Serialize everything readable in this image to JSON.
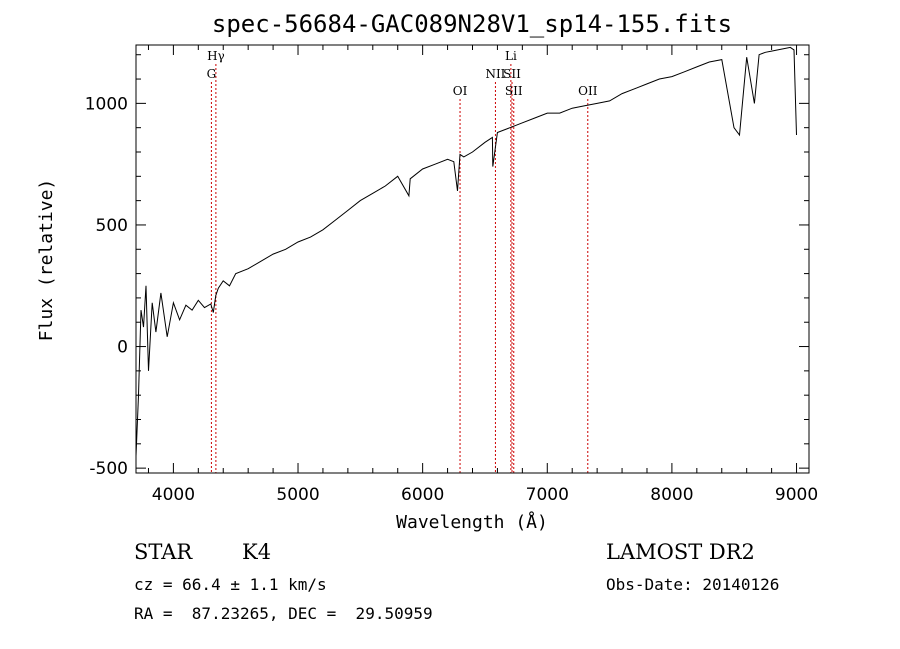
{
  "chart_data": {
    "type": "line",
    "title": "spec-56684-GAC089N28V1_sp14-155.fits",
    "xlabel": "Wavelength (Å)",
    "ylabel": "Flux (relative)",
    "xlim": [
      3700,
      9100
    ],
    "ylim": [
      -520,
      1240
    ],
    "xticks": [
      4000,
      5000,
      6000,
      7000,
      8000,
      9000
    ],
    "yticks": [
      -500,
      0,
      500,
      1000
    ],
    "series": [
      {
        "x": [
          3700,
          3720,
          3740,
          3760,
          3780,
          3800,
          3830,
          3860,
          3900,
          3950,
          4000,
          4050,
          4100,
          4150,
          4200,
          4250,
          4300,
          4320,
          4340,
          4360,
          4400,
          4450,
          4500,
          4600,
          4700,
          4800,
          4900,
          5000,
          5100,
          5200,
          5300,
          5400,
          5500,
          5600,
          5700,
          5800,
          5890,
          5900,
          6000,
          6100,
          6200,
          6250,
          6280,
          6300,
          6330,
          6400,
          6500,
          6560,
          6563,
          6600,
          6700,
          6800,
          6900,
          7000,
          7100,
          7200,
          7300,
          7400,
          7500,
          7600,
          7700,
          7800,
          7900,
          8000,
          8100,
          8200,
          8300,
          8400,
          8498,
          8542,
          8600,
          8662,
          8700,
          8750,
          8800,
          8850,
          8900,
          8950,
          8980,
          9000
        ],
        "y": [
          -450,
          -200,
          150,
          80,
          250,
          -100,
          180,
          60,
          220,
          40,
          180,
          110,
          170,
          150,
          190,
          160,
          175,
          140,
          210,
          240,
          270,
          250,
          300,
          320,
          350,
          380,
          400,
          430,
          450,
          480,
          520,
          560,
          600,
          630,
          660,
          700,
          620,
          690,
          730,
          750,
          770,
          760,
          640,
          790,
          780,
          800,
          840,
          860,
          740,
          880,
          900,
          920,
          940,
          960,
          960,
          980,
          990,
          1000,
          1010,
          1040,
          1060,
          1080,
          1100,
          1110,
          1130,
          1150,
          1170,
          1180,
          900,
          870,
          1190,
          1000,
          1200,
          1210,
          1215,
          1220,
          1225,
          1230,
          1220,
          870
        ]
      }
    ],
    "line_markers": [
      {
        "label": "Hγ",
        "x": 4341,
        "row": 0
      },
      {
        "label": "G",
        "x": 4305,
        "row": 1
      },
      {
        "label": "OI",
        "x": 6300,
        "row": 2
      },
      {
        "label": "NII",
        "x": 6584,
        "row": 1
      },
      {
        "label": "Li",
        "x": 6708,
        "row": 0
      },
      {
        "label": "SII",
        "x": 6717,
        "row": 1
      },
      {
        "label": "SII",
        "x": 6731,
        "row": 2
      },
      {
        "label": "OII",
        "x": 7325,
        "row": 2
      }
    ],
    "marker_color": "#cc0000",
    "line_color": "#000000"
  },
  "info": {
    "class": "STAR",
    "subclass": "K4",
    "survey": "LAMOST DR2",
    "cz": "cz = 66.4 ± 1.1 km/s",
    "obs_date": "Obs-Date: 20140126",
    "radec": "RA =  87.23265, DEC =  29.50959"
  }
}
